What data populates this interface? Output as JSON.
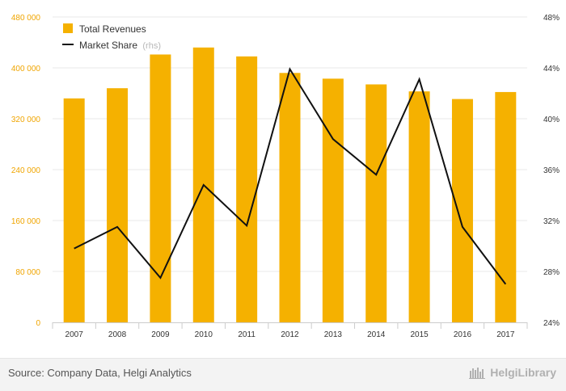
{
  "chart_data": {
    "type": "bar",
    "categories": [
      "2007",
      "2008",
      "2009",
      "2010",
      "2011",
      "2012",
      "2013",
      "2014",
      "2015",
      "2016",
      "2017"
    ],
    "series": [
      {
        "name": "Total Revenues",
        "type": "bar",
        "axis": "left",
        "color": "#f5b100",
        "values": [
          352000,
          368000,
          421000,
          432000,
          418000,
          392000,
          383000,
          374000,
          363000,
          351000,
          362000
        ]
      },
      {
        "name": "Market Share",
        "name_suffix": "(rhs)",
        "type": "line",
        "axis": "right",
        "color": "#111111",
        "values": [
          29.8,
          31.5,
          27.5,
          34.8,
          31.6,
          43.9,
          38.4,
          35.6,
          43.1,
          31.5,
          27.0
        ]
      }
    ],
    "y_left": {
      "min": 0,
      "max": 480000,
      "ticks": [
        "0",
        "80 000",
        "160 000",
        "240 000",
        "320 000",
        "400 000",
        "480 000"
      ]
    },
    "y_right": {
      "min": 24,
      "max": 48,
      "ticks": [
        "24%",
        "28%",
        "32%",
        "36%",
        "40%",
        "44%",
        "48%"
      ]
    },
    "legend_position": "top-left",
    "grid": true
  },
  "footer": {
    "source": "Source: Company Data, Helgi Analytics",
    "brand": "HelgiLibrary"
  }
}
